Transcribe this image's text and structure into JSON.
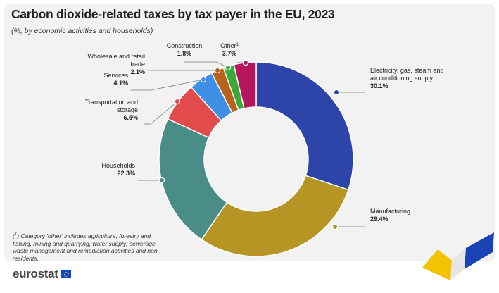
{
  "title": "Carbon dioxide-related taxes by tax payer in the EU, 2023",
  "subtitle": "(%, by economic activities and households)",
  "footnote": {
    "marker": "1",
    "text": "Category 'other' includes agriculture, forestry and fishing, mining and quarrying, water supply; sewerage, waste management and remediation activities and non-residents."
  },
  "logo": {
    "word": "eurostat",
    "icon": "eu-flag-icon"
  },
  "chart_data": {
    "type": "pie",
    "donut": true,
    "title": "Carbon dioxide-related taxes by tax payer in the EU, 2023",
    "subtitle": "(%, by economic activities and households)",
    "slices": [
      {
        "label": "Electricity, gas, steam and air conditioning supply",
        "value": 30.1,
        "value_label": "30.1%",
        "color": "#2d44a9"
      },
      {
        "label": "Manufacturing",
        "value": 29.4,
        "value_label": "29.4%",
        "color": "#b69524"
      },
      {
        "label": "Households",
        "value": 22.3,
        "value_label": "22.3%",
        "color": "#4a8d86"
      },
      {
        "label": "Transportation and storage",
        "value": 6.5,
        "value_label": "6.5%",
        "color": "#e14b4b"
      },
      {
        "label": "Services",
        "value": 4.1,
        "value_label": "4.1%",
        "color": "#3f8fe6"
      },
      {
        "label": "Wholesale and retail trade",
        "value": 2.1,
        "value_label": "2.1%",
        "color": "#b8631b"
      },
      {
        "label": "Construction",
        "value": 1.8,
        "value_label": "1.8%",
        "color": "#3aab3a"
      },
      {
        "label": "Other",
        "value": 3.7,
        "value_label": "3.7%",
        "color": "#b5175e",
        "footnote_marker": "1"
      }
    ]
  }
}
